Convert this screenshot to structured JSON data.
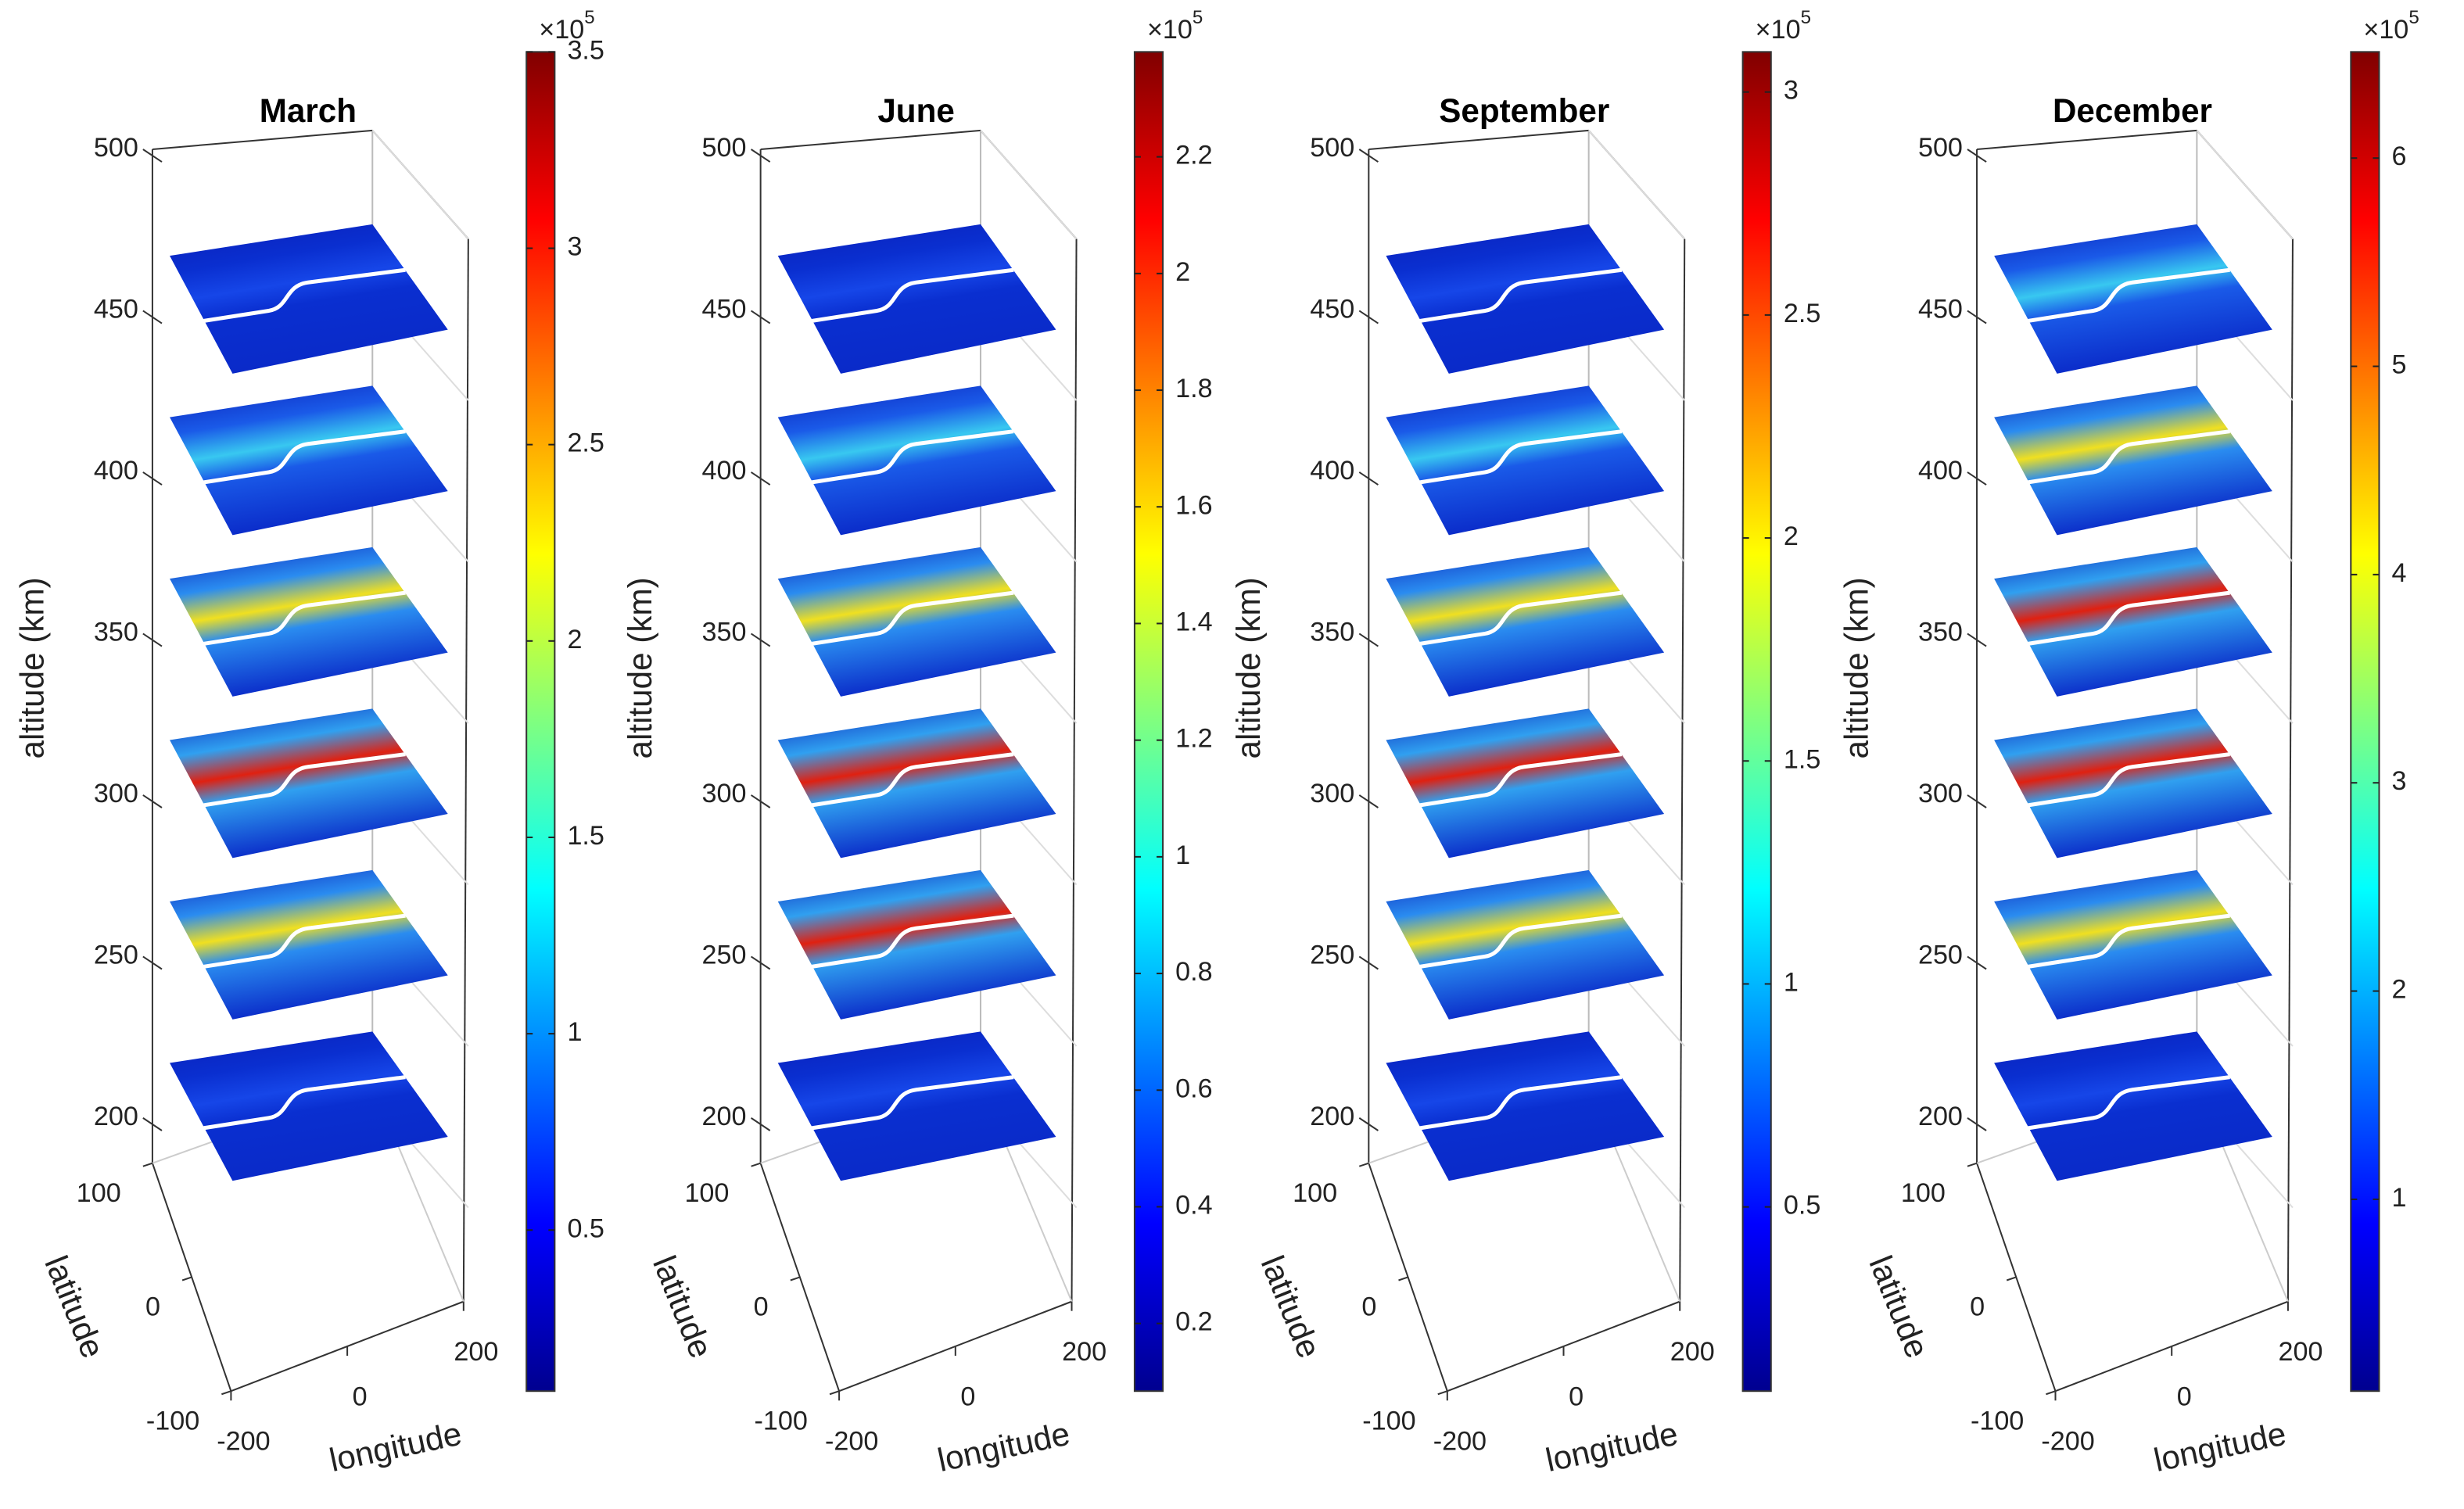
{
  "axes": {
    "zlabel": "altitude (km)",
    "ylabel": "latitude",
    "xlabel": "longitude",
    "zlim": [
      186,
      500
    ],
    "zticks": [
      200,
      250,
      300,
      350,
      400,
      450,
      500
    ],
    "ylim": [
      -100,
      100
    ],
    "yticks": [
      -100,
      0,
      100
    ],
    "xlim": [
      -200,
      200
    ],
    "xticks": [
      -200,
      0,
      200
    ],
    "slices": [
      200,
      250,
      300,
      350,
      400,
      450
    ]
  },
  "colorbar_multiplier": "×10",
  "colorbar_power": "5",
  "panels": [
    {
      "title": "March",
      "clim": [
        0.09,
        3.5
      ],
      "cticks": [
        0.5,
        1,
        1.5,
        2,
        2.5,
        3,
        3.5
      ]
    },
    {
      "title": "June",
      "clim": [
        0.084,
        2.38
      ],
      "cticks": [
        0.2,
        0.4,
        0.6,
        0.8,
        1,
        1.2,
        1.4,
        1.6,
        1.8,
        2,
        2.2
      ]
    },
    {
      "title": "September",
      "clim": [
        0.087,
        3.09
      ],
      "cticks": [
        0.5,
        1,
        1.5,
        2,
        2.5,
        3
      ]
    },
    {
      "title": "December",
      "clim": [
        0.079,
        6.51
      ],
      "cticks": [
        1,
        2,
        3,
        4,
        5,
        6
      ]
    }
  ]
}
